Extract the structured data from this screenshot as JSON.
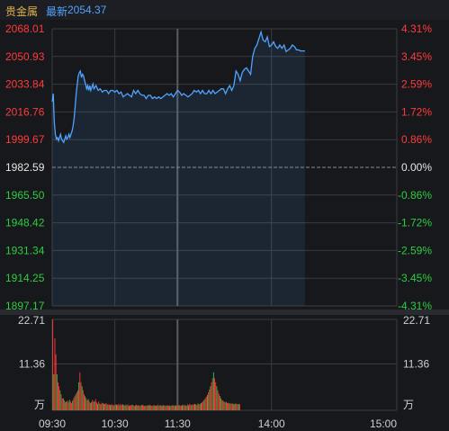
{
  "header": {
    "name": "贵金属",
    "latest_label": "最新",
    "latest_value": "2054.37"
  },
  "colors": {
    "background": "#17181c",
    "grid": "#3a3b40",
    "price_line": "#4fa3ff",
    "up": "#ff3b3b",
    "down": "#2ecc40",
    "neutral": "#e6e6e6",
    "header_text": "#e0b24a",
    "latest_text": "#4fa3ff",
    "axis_text": "#cfcfcf"
  },
  "chart_data": [
    {
      "type": "line",
      "base_price": 1982.59,
      "ylim": [
        1897.17,
        2068.01
      ],
      "y_ticks_left": [
        "2068.01",
        "2050.93",
        "2033.84",
        "2016.76",
        "1999.67",
        "1982.59",
        "1965.50",
        "1948.42",
        "1931.34",
        "1914.25",
        "1897.17"
      ],
      "y_ticks_right": [
        "4.31%",
        "3.45%",
        "2.59%",
        "1.72%",
        "0.86%",
        "0.00%",
        "-0.86%",
        "-1.72%",
        "-2.59%",
        "-3.45%",
        "-4.31%"
      ],
      "x_minutes_range": [
        0,
        330
      ],
      "points": [
        [
          0,
          2023
        ],
        [
          1,
          2028
        ],
        [
          2,
          2011
        ],
        [
          3,
          2003
        ],
        [
          4,
          2000
        ],
        [
          5,
          2001
        ],
        [
          6,
          1999
        ],
        [
          7,
          2001
        ],
        [
          8,
          2003
        ],
        [
          9,
          2000
        ],
        [
          10,
          1999
        ],
        [
          11,
          1998
        ],
        [
          12,
          2000
        ],
        [
          13,
          2002
        ],
        [
          14,
          2000
        ],
        [
          15,
          2001
        ],
        [
          16,
          2003
        ],
        [
          17,
          2001
        ],
        [
          18,
          2003
        ],
        [
          19,
          2005
        ],
        [
          20,
          2008
        ],
        [
          21,
          2013
        ],
        [
          22,
          2020
        ],
        [
          23,
          2028
        ],
        [
          24,
          2034
        ],
        [
          25,
          2039
        ],
        [
          26,
          2041
        ],
        [
          27,
          2042
        ],
        [
          28,
          2038
        ],
        [
          29,
          2040
        ],
        [
          30,
          2039
        ],
        [
          31,
          2036
        ],
        [
          32,
          2034
        ],
        [
          33,
          2031
        ],
        [
          34,
          2033
        ],
        [
          35,
          2030
        ],
        [
          36,
          2033
        ],
        [
          37,
          2030
        ],
        [
          38,
          2032
        ],
        [
          39,
          2034
        ],
        [
          40,
          2031
        ],
        [
          42,
          2033
        ],
        [
          44,
          2030
        ],
        [
          46,
          2031
        ],
        [
          48,
          2029
        ],
        [
          50,
          2030
        ],
        [
          52,
          2030
        ],
        [
          54,
          2028
        ],
        [
          56,
          2030
        ],
        [
          58,
          2030
        ],
        [
          60,
          2029
        ],
        [
          62,
          2030
        ],
        [
          64,
          2028
        ],
        [
          66,
          2029
        ],
        [
          68,
          2026
        ],
        [
          70,
          2027
        ],
        [
          72,
          2028
        ],
        [
          74,
          2027
        ],
        [
          76,
          2026
        ],
        [
          78,
          2030
        ],
        [
          80,
          2028
        ],
        [
          82,
          2030
        ],
        [
          84,
          2028
        ],
        [
          86,
          2027
        ],
        [
          88,
          2027
        ],
        [
          90,
          2025
        ],
        [
          92,
          2027
        ],
        [
          94,
          2027
        ],
        [
          96,
          2025
        ],
        [
          98,
          2026
        ],
        [
          100,
          2025
        ],
        [
          102,
          2026
        ],
        [
          104,
          2025
        ],
        [
          106,
          2026
        ],
        [
          108,
          2027
        ],
        [
          110,
          2028
        ],
        [
          112,
          2027
        ],
        [
          114,
          2028
        ],
        [
          116,
          2026
        ],
        [
          118,
          2028
        ],
        [
          120,
          2030
        ],
        [
          122,
          2029
        ],
        [
          124,
          2027
        ],
        [
          126,
          2028
        ],
        [
          128,
          2027
        ],
        [
          130,
          2026
        ],
        [
          132,
          2027
        ],
        [
          134,
          2028
        ],
        [
          136,
          2030
        ],
        [
          138,
          2029
        ],
        [
          140,
          2030
        ],
        [
          142,
          2028
        ],
        [
          144,
          2030
        ],
        [
          146,
          2028
        ],
        [
          148,
          2028
        ],
        [
          150,
          2030
        ],
        [
          152,
          2028
        ],
        [
          154,
          2030
        ],
        [
          156,
          2028
        ],
        [
          158,
          2029
        ],
        [
          160,
          2030
        ],
        [
          162,
          2031
        ],
        [
          164,
          2031
        ],
        [
          166,
          2028
        ],
        [
          168,
          2031
        ],
        [
          170,
          2033
        ],
        [
          172,
          2030
        ],
        [
          174,
          2033
        ],
        [
          176,
          2042
        ],
        [
          178,
          2040
        ],
        [
          180,
          2036
        ],
        [
          182,
          2041
        ],
        [
          184,
          2043
        ],
        [
          186,
          2044
        ],
        [
          188,
          2042
        ],
        [
          190,
          2040
        ],
        [
          192,
          2051
        ],
        [
          194,
          2056
        ],
        [
          196,
          2058
        ],
        [
          198,
          2062
        ],
        [
          200,
          2066
        ],
        [
          202,
          2061
        ],
        [
          204,
          2060
        ],
        [
          206,
          2063
        ],
        [
          208,
          2057
        ],
        [
          210,
          2058
        ],
        [
          212,
          2060
        ],
        [
          214,
          2057
        ],
        [
          216,
          2056
        ],
        [
          218,
          2058
        ],
        [
          220,
          2056
        ],
        [
          222,
          2058
        ],
        [
          224,
          2054
        ],
        [
          226,
          2055
        ],
        [
          228,
          2056
        ],
        [
          230,
          2058
        ],
        [
          232,
          2057
        ],
        [
          234,
          2055
        ],
        [
          236,
          2055
        ],
        [
          238,
          2054.37
        ],
        [
          240,
          2054.37
        ],
        [
          242,
          2054.37
        ]
      ]
    },
    {
      "type": "bar",
      "unit": "万",
      "ylim": [
        0,
        22.71
      ],
      "y_ticks": [
        "22.71",
        "11.36"
      ],
      "x_tick_labels": [
        "09:30",
        "10:30",
        "11:30",
        "14:00",
        "15:00"
      ],
      "x_tick_minutes": [
        0,
        60,
        120,
        210,
        330
      ],
      "volumes": [
        22.7,
        9,
        18,
        14,
        9,
        7,
        6,
        5,
        4,
        3,
        3,
        2.5,
        2,
        2.2,
        2.4,
        2,
        2.6,
        2.2,
        1.8,
        2.4,
        3,
        3.5,
        4,
        4.5,
        5,
        7,
        9.5,
        7,
        6,
        5,
        4,
        3.5,
        3,
        2.5,
        2.8,
        2.2,
        1.8,
        2,
        2.6,
        2.2,
        2.2,
        2.8,
        2,
        1.6,
        2.2,
        1.7,
        1.5,
        1.9,
        1.8,
        1.6,
        1.6,
        1.8,
        1.5,
        1.4,
        1.5,
        1.3,
        1.4,
        1.5,
        1.2,
        1.3,
        1.5,
        1.4,
        1.3,
        1.6,
        1.2,
        1.6,
        1.3,
        1.5,
        1.3,
        1.2,
        1.4,
        1.2,
        1.5,
        1.1,
        1.3,
        1.2,
        1.4,
        1.3,
        1.1,
        1.2,
        1.4,
        1.2,
        1.3,
        1.1,
        1.2,
        1.3,
        1.4,
        1.2,
        1.1,
        1.2,
        1.1,
        1.3,
        1.2,
        1.4,
        1.2,
        1.1,
        1.2,
        1.3,
        1.1,
        1.2,
        1.2,
        1.4,
        1.1,
        1.3,
        1.2,
        1.1,
        1.3,
        1.2,
        1.1,
        1.2,
        1.3,
        1.1,
        1.2,
        1.1,
        1.2,
        1.3,
        1.1,
        1.2,
        1.2,
        1.1,
        1.2,
        1.3,
        1.2,
        1.1,
        1.3,
        1.4,
        1.2,
        1.3,
        1.1,
        1.5,
        1.2,
        1.6,
        1.4,
        1.3,
        1.5,
        1.4,
        1.6,
        1.5,
        1.3,
        1.7,
        1.5,
        1.6,
        1.8,
        2,
        2.3,
        2.6,
        3,
        3.4,
        3.8,
        4.5,
        5.2,
        6,
        7,
        8,
        9.5,
        8,
        7,
        6,
        5,
        4.2,
        3.6,
        3,
        2.6,
        2.4,
        2.2,
        2,
        2.1,
        1.8,
        1.9,
        1.7,
        1.8,
        1.6,
        1.7,
        1.6,
        1.5,
        1.7,
        1.6,
        1.5,
        1.6,
        1.5
      ]
    }
  ]
}
